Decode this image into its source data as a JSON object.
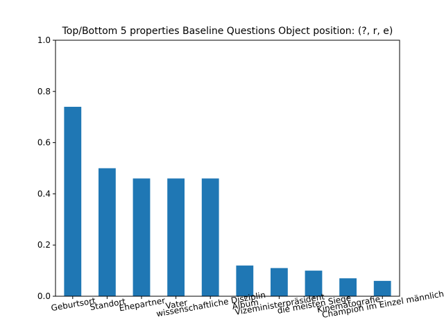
{
  "chart_data": {
    "type": "bar",
    "title": "Top/Bottom 5 properties Baseline Questions Object position: (?, r, e)",
    "xlabel": "",
    "ylabel": "",
    "ylim": [
      0,
      1.0
    ],
    "yticks": [
      "0.0",
      "0.2",
      "0.4",
      "0.6",
      "0.8",
      "1.0"
    ],
    "categories": [
      "Geburtsort",
      "Standort",
      "Ehepartner",
      "Vater",
      "wissenschaftliche Disziplin",
      "Album",
      "Vizeministerpräsident",
      "die meisten Siege",
      "Kinematografie",
      "Champion im Einzel männlich"
    ],
    "values": [
      0.74,
      0.5,
      0.46,
      0.46,
      0.46,
      0.12,
      0.11,
      0.1,
      0.07,
      0.06
    ],
    "bar_color": "#1f77b4",
    "grid": false,
    "legend": "none"
  }
}
